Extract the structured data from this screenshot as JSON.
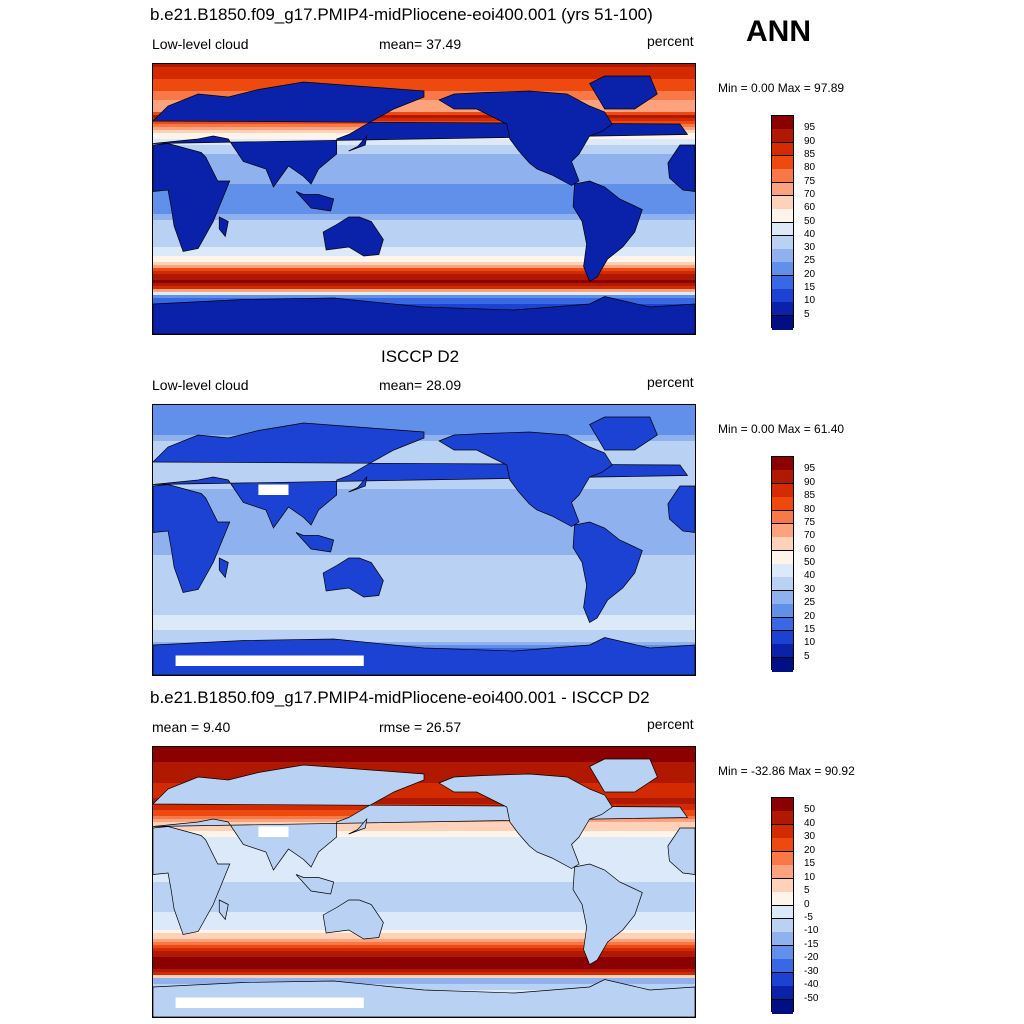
{
  "season": "ANN",
  "panels": [
    {
      "title": "b.e21.B1850.f09_g17.PMIP4-midPliocene-eoi400.001 (yrs 51-100)",
      "left_label": "Low-level cloud",
      "center_label": "mean=  37.49",
      "right_label": "percent",
      "minmax": "Min =   0.00 Max =  97.89",
      "colorbar": {
        "labels": [
          "95",
          "90",
          "85",
          "80",
          "75",
          "70",
          "60",
          "50",
          "40",
          "30",
          "25",
          "20",
          "15",
          "10",
          "5"
        ]
      }
    },
    {
      "title": "ISCCP D2",
      "left_label": "Low-level cloud",
      "center_label": "mean=  28.09",
      "right_label": "percent",
      "minmax": "Min =   0.00 Max =  61.40",
      "colorbar": {
        "labels": [
          "95",
          "90",
          "85",
          "80",
          "75",
          "70",
          "60",
          "50",
          "40",
          "30",
          "25",
          "20",
          "15",
          "10",
          "5"
        ]
      }
    },
    {
      "title": "b.e21.B1850.f09_g17.PMIP4-midPliocene-eoi400.001 - ISCCP D2",
      "left_label": "mean =   9.40",
      "center_label": "rmse =  26.57",
      "right_label": "percent",
      "minmax": "Min = -32.86 Max =  90.92",
      "colorbar": {
        "labels": [
          "50",
          "40",
          "30",
          "20",
          "15",
          "10",
          "5",
          "0",
          "-5",
          "-10",
          "-15",
          "-20",
          "-30",
          "-40",
          "-50"
        ]
      }
    }
  ],
  "colors": {
    "scale": [
      "#8b0000",
      "#b01800",
      "#d42a00",
      "#ee4a10",
      "#f87848",
      "#fca27c",
      "#fdd2b8",
      "#fff4ea",
      "#dce9f9",
      "#b9d1f3",
      "#8fb2ee",
      "#6090ea",
      "#3968e4",
      "#1b42d2",
      "#0a22aa",
      "#000f84"
    ]
  },
  "chart_data": [
    {
      "type": "heatmap",
      "title": "b.e21.B1850.f09_g17.PMIP4-midPliocene-eoi400.001 (yrs 51-100)",
      "variable": "Low-level cloud",
      "units": "percent",
      "mean": 37.49,
      "min": 0.0,
      "max": 97.89,
      "levels": [
        5,
        10,
        15,
        20,
        25,
        30,
        40,
        50,
        60,
        70,
        75,
        80,
        85,
        90,
        95
      ],
      "zonal_profile": [
        [
          90,
          92
        ],
        [
          80,
          85
        ],
        [
          70,
          78
        ],
        [
          60,
          70
        ],
        [
          55,
          92
        ],
        [
          50,
          80
        ],
        [
          40,
          48
        ],
        [
          30,
          30
        ],
        [
          20,
          28
        ],
        [
          10,
          25
        ],
        [
          0,
          22
        ],
        [
          -10,
          25
        ],
        [
          -20,
          35
        ],
        [
          -30,
          35
        ],
        [
          -40,
          55
        ],
        [
          -50,
          92
        ],
        [
          -55,
          95
        ],
        [
          -60,
          85
        ],
        [
          -65,
          20
        ],
        [
          -75,
          8
        ],
        [
          -90,
          5
        ]
      ]
    },
    {
      "type": "heatmap",
      "title": "ISCCP D2",
      "variable": "Low-level cloud",
      "units": "percent",
      "mean": 28.09,
      "min": 0.0,
      "max": 61.4,
      "levels": [
        5,
        10,
        15,
        20,
        25,
        30,
        40,
        50,
        60,
        70,
        75,
        80,
        85,
        90,
        95
      ],
      "zonal_profile": [
        [
          90,
          20
        ],
        [
          80,
          22
        ],
        [
          70,
          25
        ],
        [
          60,
          35
        ],
        [
          50,
          38
        ],
        [
          40,
          33
        ],
        [
          30,
          28
        ],
        [
          20,
          30
        ],
        [
          10,
          28
        ],
        [
          0,
          25
        ],
        [
          -10,
          30
        ],
        [
          -20,
          35
        ],
        [
          -30,
          38
        ],
        [
          -40,
          38
        ],
        [
          -50,
          40
        ],
        [
          -60,
          40
        ],
        [
          -65,
          35
        ],
        [
          -75,
          10
        ],
        [
          -90,
          5
        ]
      ]
    },
    {
      "type": "heatmap",
      "title": "b.e21.B1850.f09_g17.PMIP4-midPliocene-eoi400.001 - ISCCP D2",
      "variable": "Low-level cloud",
      "units": "percent",
      "mean": 9.4,
      "rmse": 26.57,
      "min": -32.86,
      "max": 90.92,
      "levels": [
        -50,
        -40,
        -30,
        -20,
        -15,
        -10,
        -5,
        0,
        5,
        10,
        15,
        20,
        30,
        40,
        50
      ],
      "zonal_profile": [
        [
          90,
          55
        ],
        [
          80,
          50
        ],
        [
          70,
          45
        ],
        [
          60,
          30
        ],
        [
          55,
          45
        ],
        [
          50,
          35
        ],
        [
          40,
          10
        ],
        [
          30,
          0
        ],
        [
          20,
          -5
        ],
        [
          10,
          -5
        ],
        [
          0,
          -5
        ],
        [
          -10,
          -8
        ],
        [
          -20,
          -5
        ],
        [
          -30,
          -5
        ],
        [
          -40,
          15
        ],
        [
          -50,
          52
        ],
        [
          -55,
          55
        ],
        [
          -60,
          45
        ],
        [
          -65,
          -15
        ],
        [
          -75,
          0
        ],
        [
          -90,
          0
        ]
      ]
    }
  ]
}
